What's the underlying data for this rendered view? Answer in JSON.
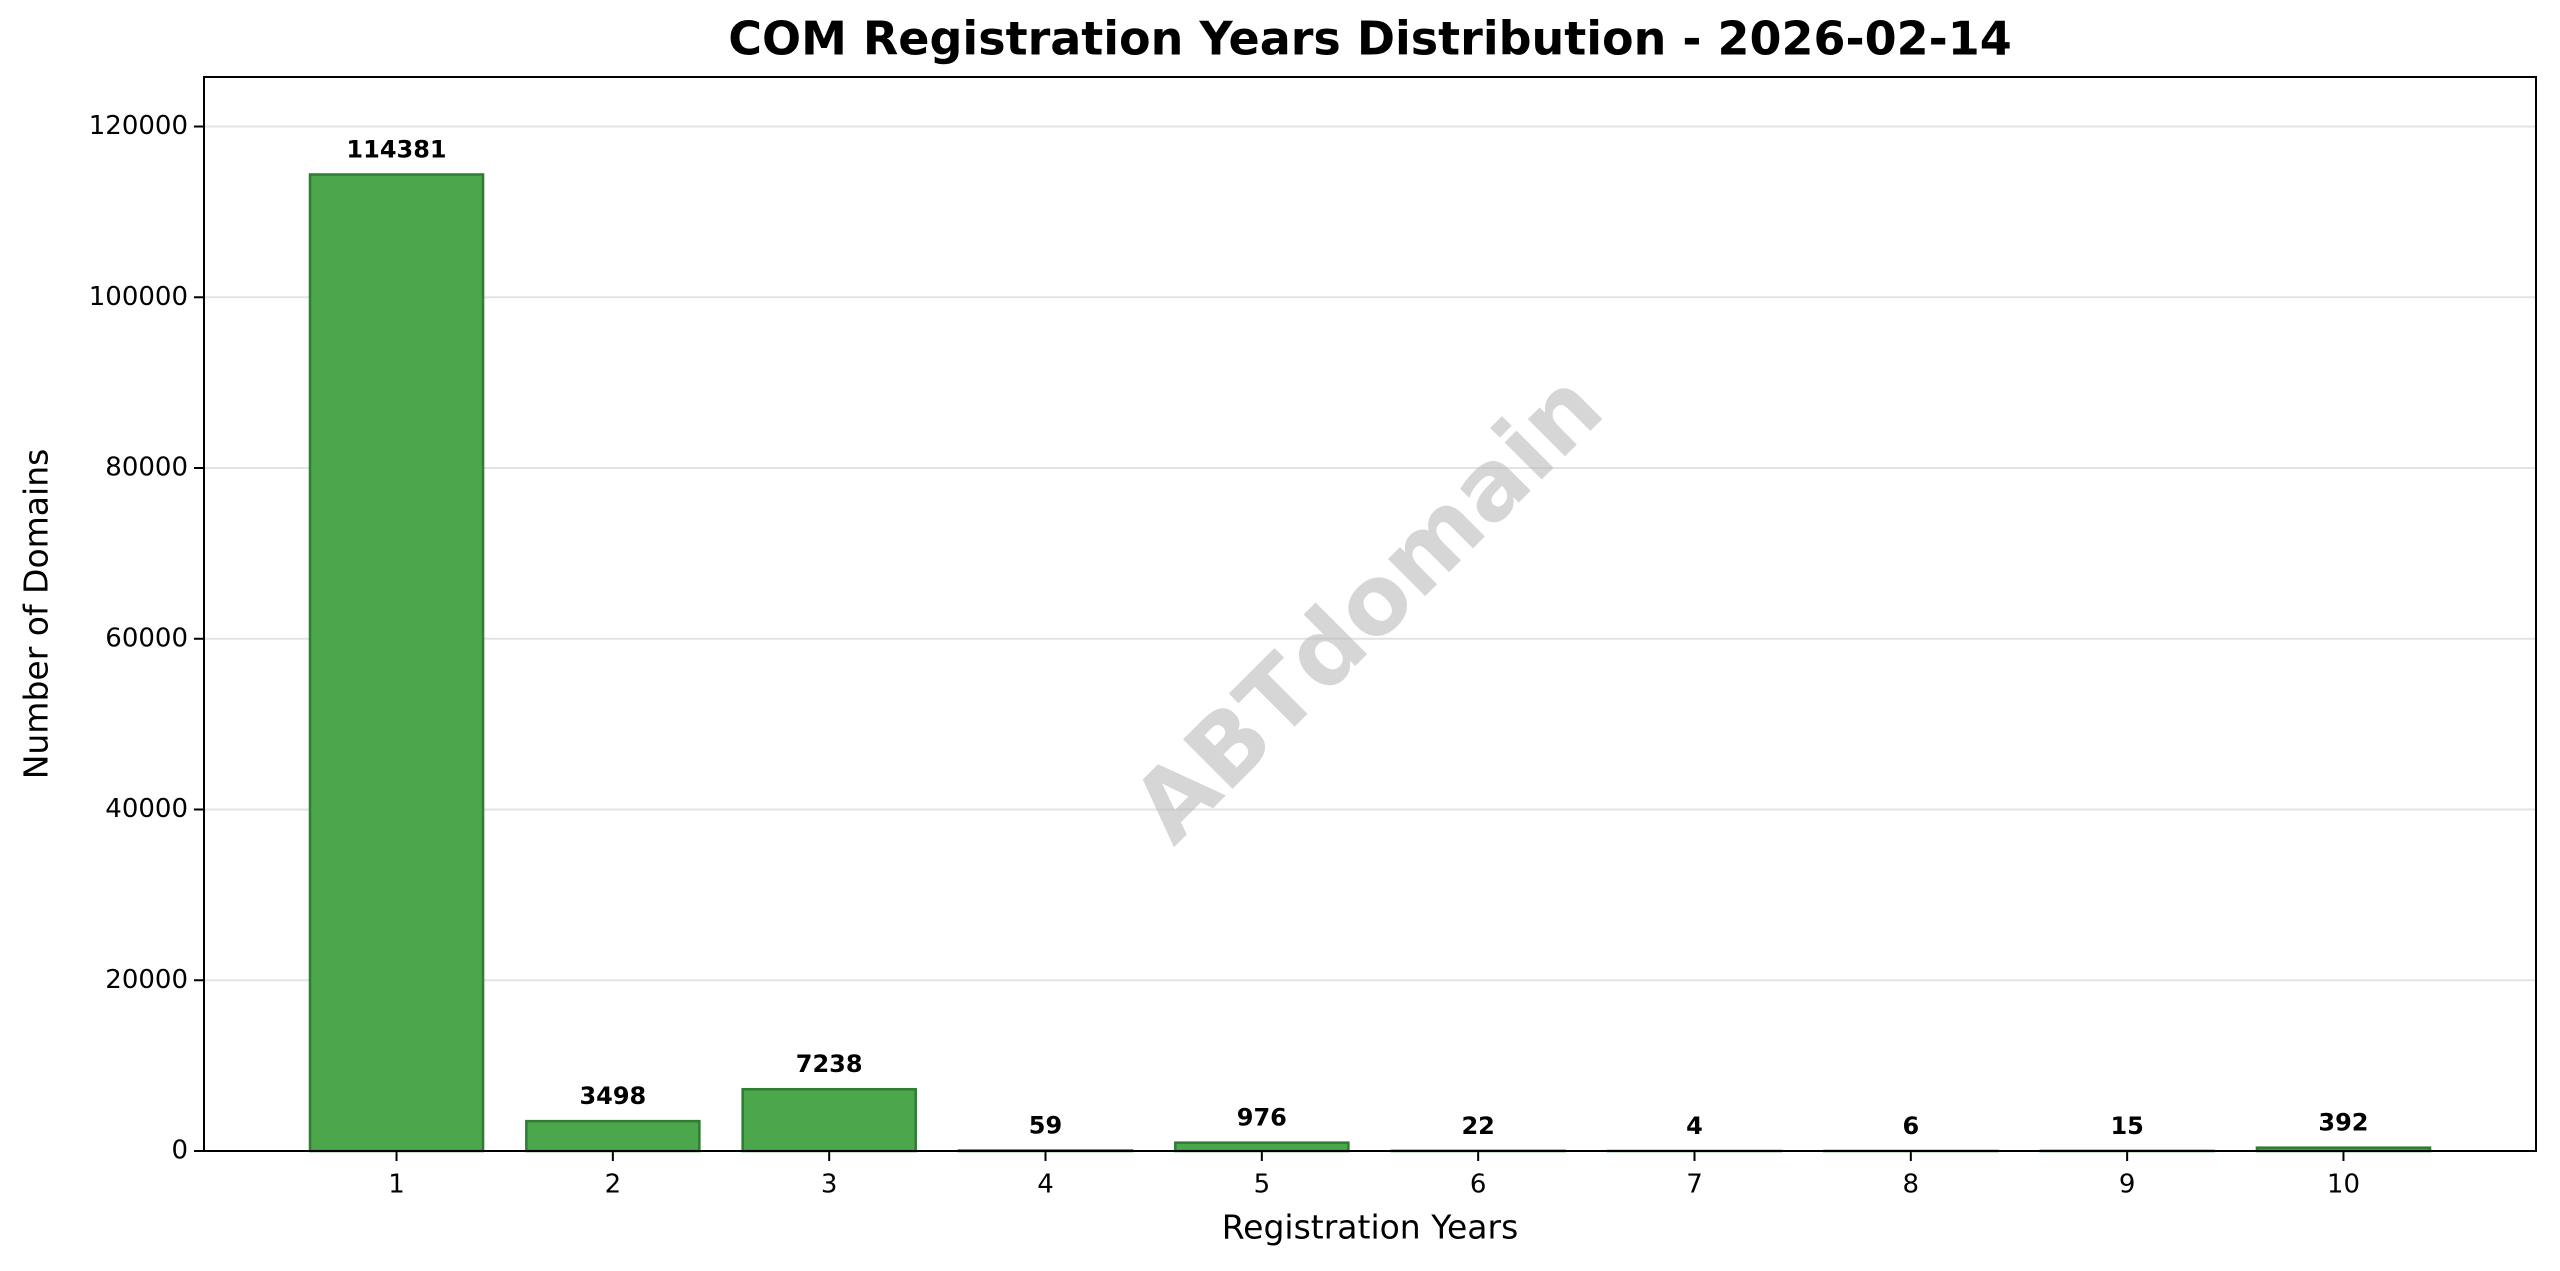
{
  "chart_data": {
    "type": "bar",
    "title": "COM Registration Years Distribution - 2026-02-14",
    "xlabel": "Registration Years",
    "ylabel": "Number of Domains",
    "watermark": "ABTdomain",
    "x": [
      1,
      2,
      3,
      4,
      5,
      6,
      7,
      8,
      9,
      10
    ],
    "values": [
      114381,
      3498,
      7238,
      59,
      976,
      22,
      4,
      6,
      15,
      392
    ],
    "color": "#4ca64c",
    "edgecolor": "#2e7d32",
    "xlim": [
      0.11,
      10.89
    ],
    "xticks": [
      1,
      2,
      3,
      4,
      5,
      6,
      7,
      8,
      9,
      10
    ],
    "ylim": [
      0,
      125800
    ],
    "yticks": [
      0,
      20000,
      40000,
      60000,
      80000,
      100000,
      120000
    ],
    "grid": true
  }
}
